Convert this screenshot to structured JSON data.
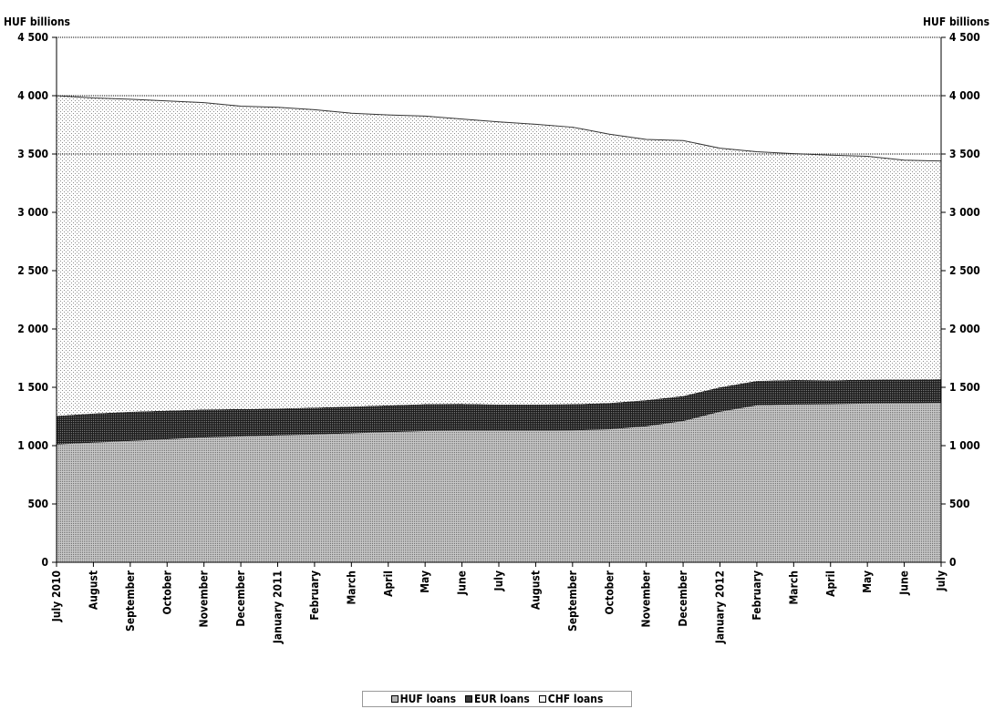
{
  "chart_data": {
    "type": "area",
    "y_axis_left_label": "HUF billions",
    "y_axis_right_label": "HUF billions",
    "ylim": [
      0,
      4500
    ],
    "yticks": [
      "0",
      "500",
      "1 000",
      "1 500",
      "2 000",
      "2 500",
      "3 000",
      "3 500",
      "4 000",
      "4 500"
    ],
    "ytick_values": [
      0,
      500,
      1000,
      1500,
      2000,
      2500,
      3000,
      3500,
      4000,
      4500
    ],
    "categories": [
      "July 2010",
      "August",
      "September",
      "October",
      "November",
      "December",
      "January 2011",
      "February",
      "March",
      "April",
      "May",
      "June",
      "July",
      "August",
      "September",
      "October",
      "November",
      "December",
      "January 2012",
      "February",
      "March",
      "April",
      "May",
      "June",
      "July"
    ],
    "stacked": true,
    "series": [
      {
        "name": "HUF loans",
        "values": [
          1010,
          1025,
          1040,
          1055,
          1070,
          1078,
          1088,
          1095,
          1105,
          1115,
          1125,
          1128,
          1128,
          1128,
          1130,
          1140,
          1165,
          1210,
          1290,
          1345,
          1353,
          1355,
          1360,
          1362,
          1365
        ]
      },
      {
        "name": "EUR loans",
        "values": [
          245,
          250,
          250,
          245,
          240,
          235,
          230,
          230,
          230,
          230,
          230,
          230,
          225,
          225,
          225,
          225,
          225,
          215,
          210,
          210,
          210,
          205,
          205,
          205,
          205
        ]
      },
      {
        "name": "CHF loans",
        "values": [
          2745,
          2705,
          2680,
          2655,
          2630,
          2597,
          2582,
          2555,
          2515,
          2490,
          2470,
          2442,
          2422,
          2402,
          2375,
          2305,
          2235,
          2190,
          2050,
          1965,
          1940,
          1930,
          1915,
          1880,
          1870
        ]
      }
    ],
    "reference_lines": [
      4000,
      3500
    ],
    "grid": false,
    "legend_position": "bottom"
  },
  "colors": {
    "huf": "#aaaaaa",
    "eur": "#3a3a3a",
    "chf_dot": "#8c8c8c",
    "line": "#333333"
  }
}
